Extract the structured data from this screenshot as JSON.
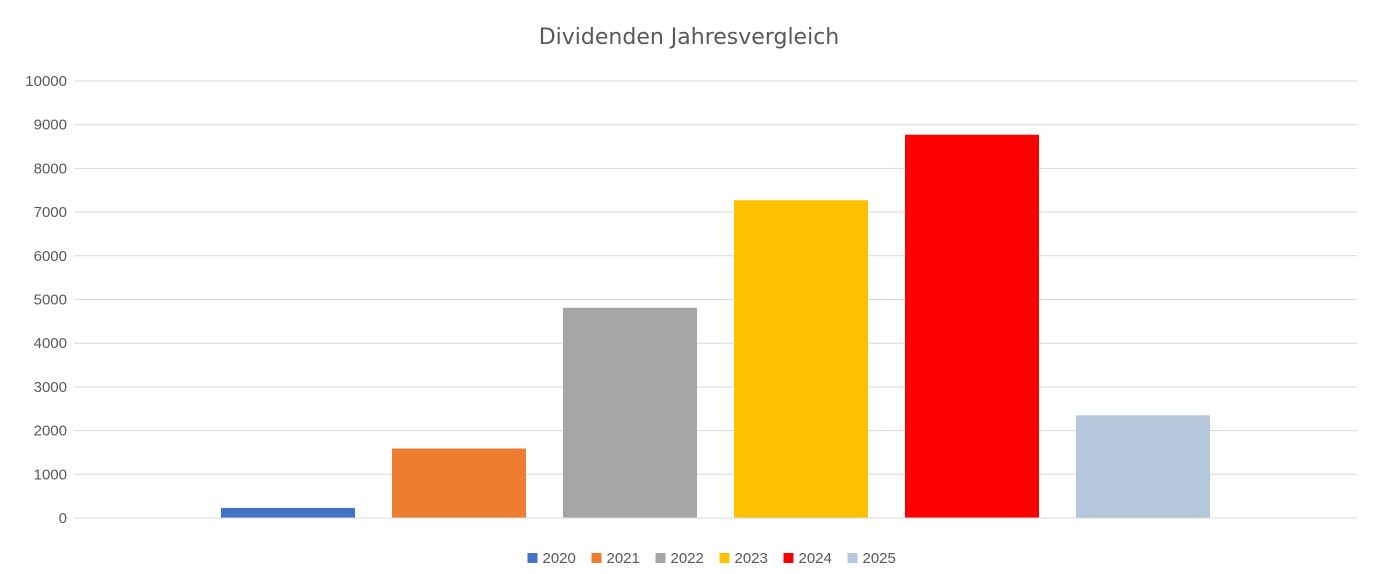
{
  "chart_data": {
    "type": "bar",
    "title": "Dividenden Jahresvergleich",
    "xlabel": "",
    "ylabel": "",
    "ylim": [
      0,
      10000
    ],
    "yticks": [
      0,
      1000,
      2000,
      3000,
      4000,
      5000,
      6000,
      7000,
      8000,
      9000,
      10000
    ],
    "grid": true,
    "legend_position": "bottom",
    "series": [
      {
        "name": "2020",
        "value": 230,
        "color": "#4472C4"
      },
      {
        "name": "2021",
        "value": 1590,
        "color": "#ED7D31"
      },
      {
        "name": "2022",
        "value": 4810,
        "color": "#A5A5A5"
      },
      {
        "name": "2023",
        "value": 7270,
        "color": "#FFC000"
      },
      {
        "name": "2024",
        "value": 8770,
        "color": "#FF0000"
      },
      {
        "name": "2025",
        "value": 2350,
        "color": "#B4C7DC"
      }
    ]
  }
}
